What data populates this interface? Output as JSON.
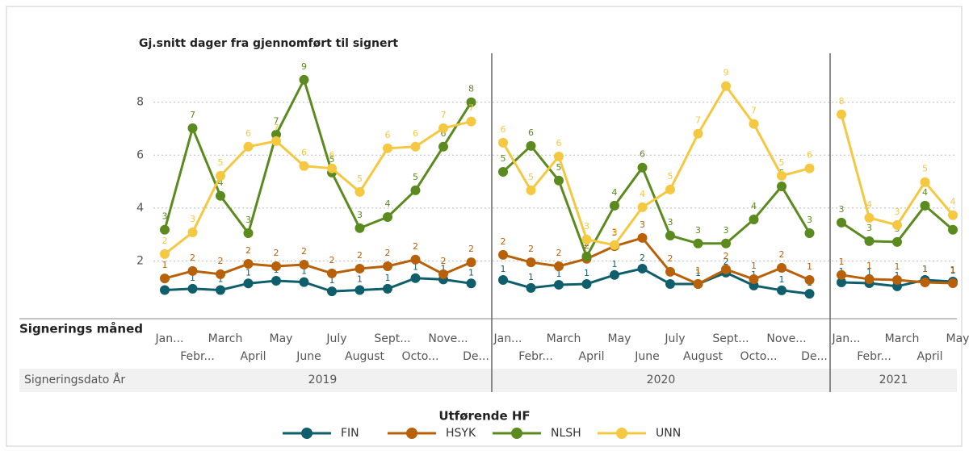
{
  "chart_data": {
    "type": "line",
    "title": "Gj.snitt dager fra gjennomført til signert",
    "x_label": "Signerings måned",
    "group_label": "Signeringsdato År",
    "legend_title": "Utførende HF",
    "ylim": [
      0,
      9.7
    ],
    "yticks": [
      2,
      4,
      6,
      8
    ],
    "grid": true,
    "series": [
      {
        "name": "FIN",
        "color": "#0e5f6b"
      },
      {
        "name": "HSYK",
        "color": "#b8600a"
      },
      {
        "name": "NLSH",
        "color": "#5b8a1e"
      },
      {
        "name": "UNN",
        "color": "#f5c842"
      }
    ],
    "panels": [
      {
        "year": "2019",
        "categories": [
          "Jan...",
          "Febr...",
          "March",
          "April",
          "May",
          "June",
          "July",
          "August",
          "Sept...",
          "Octo...",
          "Nove...",
          "De..."
        ],
        "values": [
          [
            0.9,
            0.95,
            0.9,
            1.15,
            1.25,
            1.2,
            0.85,
            0.9,
            0.95,
            1.35,
            1.3,
            1.15
          ],
          [
            1.34,
            1.62,
            1.5,
            1.89,
            1.8,
            1.86,
            1.53,
            1.71,
            1.8,
            2.05,
            1.5,
            1.95
          ],
          [
            3.18,
            7.02,
            4.46,
            3.05,
            6.78,
            8.85,
            5.34,
            3.24,
            3.66,
            4.67,
            6.32,
            8.0
          ],
          [
            2.26,
            3.08,
            5.22,
            6.32,
            6.53,
            5.59,
            5.5,
            4.61,
            6.26,
            6.32,
            7.02,
            7.27
          ]
        ],
        "value_labels": [
          [
            "1",
            "1",
            "1",
            "1",
            "1",
            "1",
            "1",
            "1",
            "1",
            "1",
            "1",
            "1"
          ],
          [
            "1",
            "2",
            "2",
            "2",
            "2",
            "2",
            "2",
            "2",
            "2",
            "2",
            "2",
            "2"
          ],
          [
            "3",
            "7",
            "4",
            "3",
            "7",
            "9",
            "5",
            "3",
            "4",
            "5",
            "6",
            "8"
          ],
          [
            "2",
            "3",
            "5",
            "6",
            "7",
            "6",
            "6",
            "5",
            "6",
            "6",
            "7",
            "7"
          ]
        ]
      },
      {
        "year": "2020",
        "categories": [
          "Jan...",
          "Febr...",
          "March",
          "April",
          "May",
          "June",
          "July",
          "August",
          "Sept...",
          "Octo...",
          "Nove...",
          "De..."
        ],
        "values": [
          [
            1.28,
            0.98,
            1.1,
            1.13,
            1.47,
            1.71,
            1.13,
            1.13,
            1.56,
            1.07,
            0.89,
            0.76
          ],
          [
            2.23,
            1.95,
            1.8,
            2.08,
            2.56,
            2.87,
            1.59,
            1.13,
            1.68,
            1.31,
            1.74,
            1.28
          ],
          [
            5.37,
            6.35,
            5.04,
            2.17,
            4.09,
            5.53,
            2.96,
            2.66,
            2.66,
            3.57,
            4.82,
            3.05
          ],
          [
            6.47,
            4.67,
            5.95,
            2.81,
            2.6,
            4.03,
            4.7,
            6.81,
            8.61,
            7.18,
            5.22,
            5.5
          ]
        ],
        "value_labels": [
          [
            "1",
            "1",
            "1",
            "1",
            "1",
            "2",
            "1",
            "1",
            "2",
            "1",
            "1",
            "1"
          ],
          [
            "2",
            "2",
            "2",
            "2",
            "3",
            "3",
            "2",
            "1",
            "2",
            "1",
            "2",
            "1"
          ],
          [
            "5",
            "6",
            "5",
            "2",
            "4",
            "6",
            "3",
            "3",
            "3",
            "4",
            "5",
            "3"
          ],
          [
            "6",
            "5",
            "6",
            "3",
            "3",
            "4",
            "5",
            "7",
            "9",
            "7",
            "5",
            "6"
          ]
        ]
      },
      {
        "year": "2021",
        "categories": [
          "Jan...",
          "Febr...",
          "March",
          "April",
          "May"
        ],
        "values": [
          [
            1.19,
            1.16,
            1.04,
            1.28,
            1.22
          ],
          [
            1.47,
            1.31,
            1.28,
            1.19,
            1.16
          ],
          [
            3.45,
            2.75,
            2.72,
            4.09,
            3.18
          ],
          [
            7.54,
            3.63,
            3.36,
            4.98,
            3.73
          ]
        ],
        "value_labels": [
          [
            "1",
            "1",
            "1",
            "1",
            "1"
          ],
          [
            "1",
            "1",
            "1",
            "1",
            "1"
          ],
          [
            "3",
            "3",
            "3",
            "4",
            "3"
          ],
          [
            "8",
            "4",
            "3",
            "5",
            "4"
          ]
        ]
      }
    ]
  }
}
